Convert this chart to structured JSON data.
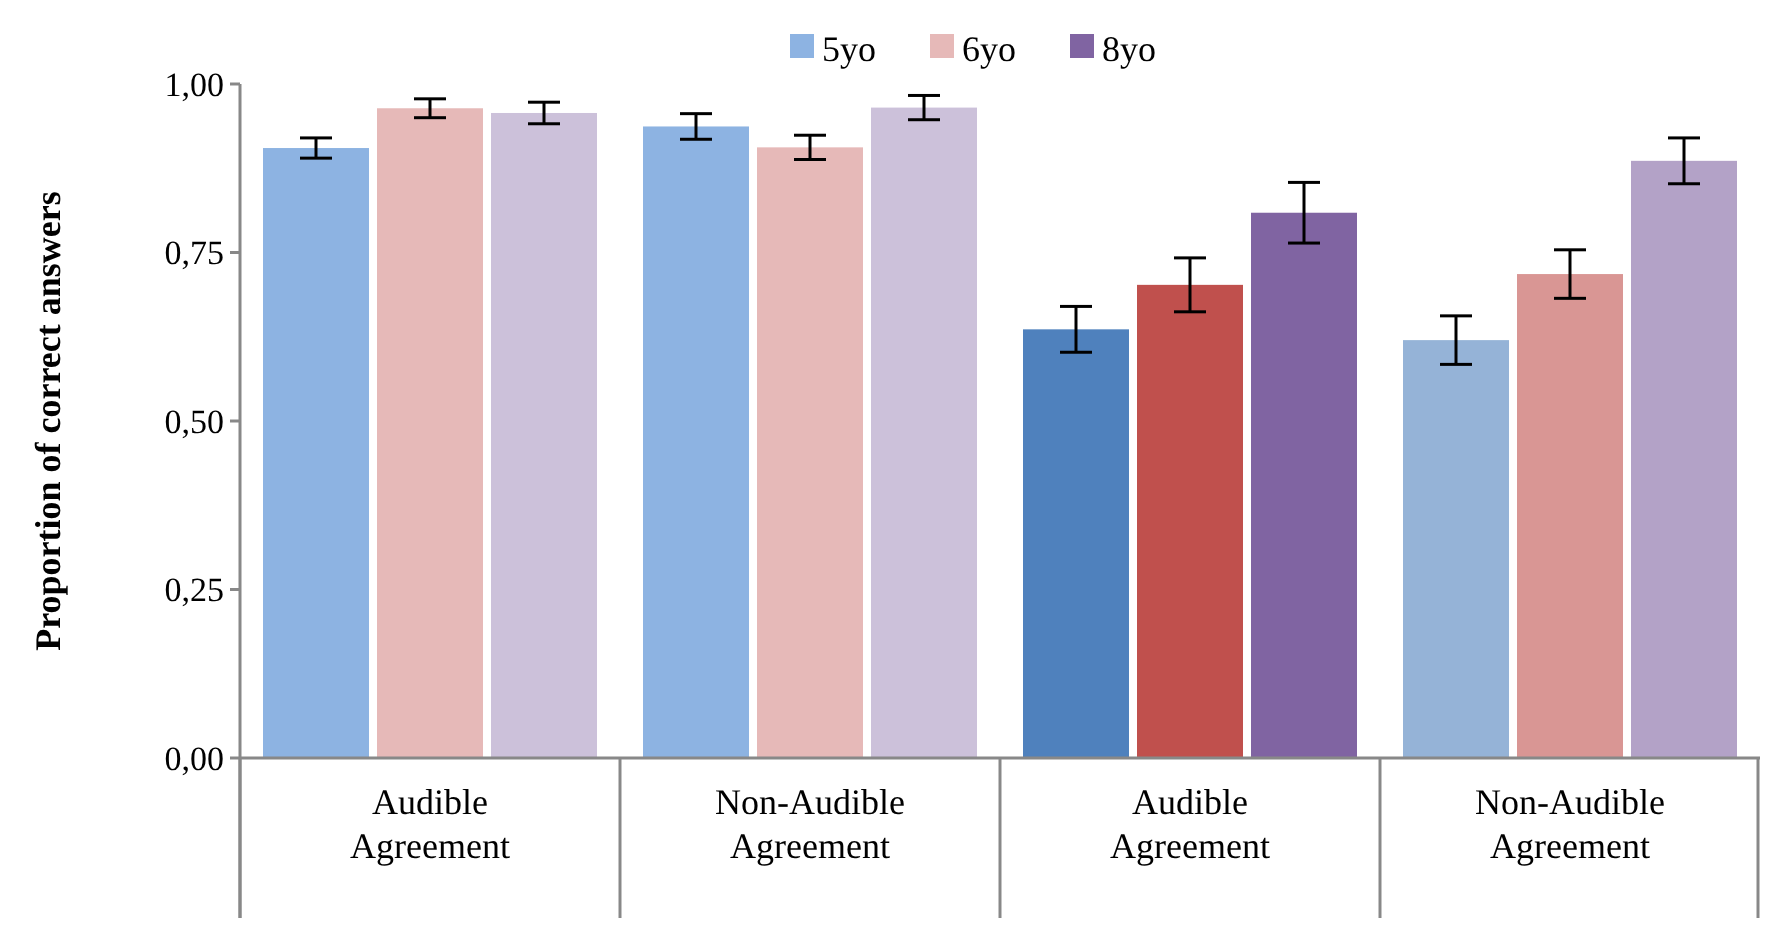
{
  "chart_data": {
    "type": "bar",
    "ylabel": "Proportion of correct answers",
    "categories": [
      "Audible Agreement",
      "Non-Audible Agreement",
      "Audible Agreement",
      "Non-Audible Agreement"
    ],
    "series": [
      {
        "name": "5yo",
        "color": "#8db3e2",
        "colors": [
          "#8db3e2",
          "#8db3e2",
          "#4f81bd",
          "#95b3d7"
        ],
        "values": [
          0.905,
          0.937,
          0.636,
          0.62
        ],
        "errors": [
          0.015,
          0.019,
          0.034,
          0.036
        ]
      },
      {
        "name": "6yo",
        "color": "#e6b9b8",
        "colors": [
          "#e6b9b8",
          "#e6b9b8",
          "#c0504d",
          "#d99694"
        ],
        "values": [
          0.964,
          0.906,
          0.702,
          0.718
        ],
        "errors": [
          0.014,
          0.018,
          0.04,
          0.036
        ]
      },
      {
        "name": "8yo",
        "color": "#8064a2",
        "colors": [
          "#ccc1da",
          "#ccc1da",
          "#8064a2",
          "#b3a2c7"
        ],
        "values": [
          0.957,
          0.965,
          0.809,
          0.886
        ],
        "errors": [
          0.016,
          0.018,
          0.045,
          0.034
        ]
      }
    ],
    "ylim": [
      0,
      1
    ],
    "yticks": [
      {
        "value": 0,
        "label": "0,00"
      },
      {
        "value": 0.25,
        "label": "0,25"
      },
      {
        "value": 0.5,
        "label": "0,50"
      },
      {
        "value": 0.75,
        "label": "0,75"
      },
      {
        "value": 1,
        "label": "1,00"
      }
    ],
    "legend": "top"
  }
}
